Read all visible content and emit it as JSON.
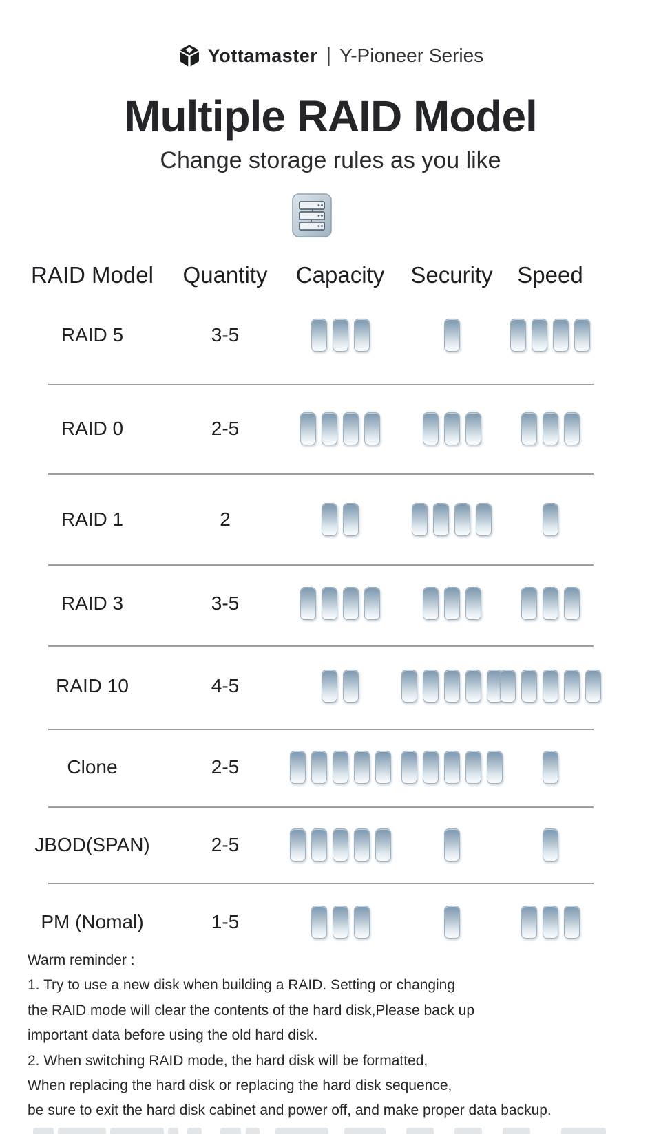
{
  "brand": {
    "logo_icon": "yottamaster-cube-icon",
    "name": "Yottamaster",
    "separator": "|",
    "series": "Y-Pioneer Series"
  },
  "hero": {
    "title": "Multiple RAID Model",
    "subtitle": "Change storage rules as you like",
    "icon": "raid-enclosure-icon"
  },
  "table": {
    "columns": [
      "RAID Model",
      "Quantity",
      "Capacity",
      "Security",
      "Speed"
    ],
    "max_rating": 5,
    "rows": [
      {
        "model": "RAID 5",
        "quantity": "3-5",
        "capacity": 3,
        "security": 1,
        "speed": 4
      },
      {
        "model": "RAID 0",
        "quantity": "2-5",
        "capacity": 4,
        "security": 3,
        "speed": 3
      },
      {
        "model": "RAID 1",
        "quantity": "2",
        "capacity": 2,
        "security": 4,
        "speed": 1
      },
      {
        "model": "RAID 3",
        "quantity": "3-5",
        "capacity": 4,
        "security": 3,
        "speed": 3
      },
      {
        "model": "RAID 10",
        "quantity": "4-5",
        "capacity": 2,
        "security": 5,
        "speed": 5
      },
      {
        "model": "Clone",
        "quantity": "2-5",
        "capacity": 5,
        "security": 5,
        "speed": 1
      },
      {
        "model": "JBOD(SPAN)",
        "quantity": "2-5",
        "capacity": 5,
        "security": 1,
        "speed": 1
      },
      {
        "model": "PM (Nomal)",
        "quantity": "1-5",
        "capacity": 3,
        "security": 1,
        "speed": 3
      }
    ]
  },
  "reminder": {
    "heading": "Warm reminder :",
    "lines": [
      "1. Try to use a new disk when building a RAID. Setting or changing",
      "the RAID mode will clear the contents of the hard disk,Please back up",
      "important data before using the old hard disk.",
      "2. When switching RAID mode, the hard disk will be formatted,",
      "When replacing the hard disk or replacing the hard disk sequence,",
      "be sure to exit the hard disk cabinet and power off, and make proper data backup."
    ]
  },
  "colors": {
    "pill_steel_blue": "#7c96ac",
    "divider_gray": "#8c8c8c",
    "text_dark": "#232427"
  }
}
